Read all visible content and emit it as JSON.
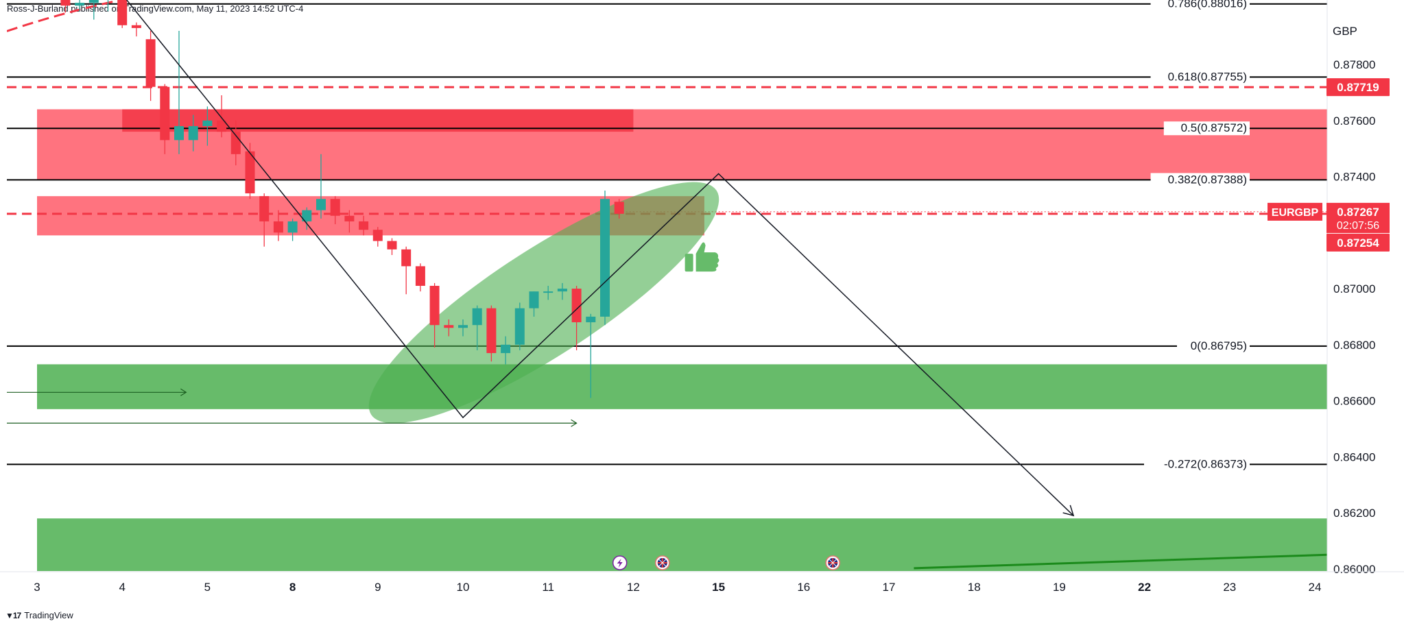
{
  "header": {
    "published_text": "Ross-J-Burland published on TradingView.com, May 11, 2023 14:52 UTC-4"
  },
  "footer": {
    "brand": "TradingView"
  },
  "colors": {
    "bull": "#26a69a",
    "bear": "#f23645",
    "supply_zone": "#ff5b68",
    "demand_zone": "#4caf50",
    "ellipse": "#4caf50",
    "price_label": "#f23645"
  },
  "chart_data": {
    "type": "candlestick",
    "symbol": "EURGBP",
    "currency": "GBP",
    "ylim": [
      0.8598,
      0.8803
    ],
    "y_ticks": [
      "0.87800",
      "0.87600",
      "0.87400",
      "0.87000",
      "0.86800",
      "0.86600",
      "0.86400",
      "0.86200",
      "0.86000"
    ],
    "x_ticks": [
      {
        "label": "3",
        "slot": 0
      },
      {
        "label": "4",
        "slot": 6
      },
      {
        "label": "5",
        "slot": 12
      },
      {
        "label": "8",
        "slot": 18
      },
      {
        "label": "9",
        "slot": 24
      },
      {
        "label": "10",
        "slot": 30
      },
      {
        "label": "11",
        "slot": 36
      },
      {
        "label": "12",
        "slot": 42
      },
      {
        "label": "15",
        "slot": 48
      },
      {
        "label": "16",
        "slot": 54
      },
      {
        "label": "17",
        "slot": 60
      },
      {
        "label": "18",
        "slot": 66
      },
      {
        "label": "19",
        "slot": 72
      },
      {
        "label": "22",
        "slot": 78
      },
      {
        "label": "23",
        "slot": 84
      },
      {
        "label": "24",
        "slot": 90
      }
    ],
    "candles": [
      {
        "slot": 2,
        "o": 0.88055,
        "h": 0.8808,
        "l": 0.87985,
        "c": 0.8801
      },
      {
        "slot": 3,
        "o": 0.8801,
        "h": 0.8806,
        "l": 0.8799,
        "c": 0.8802
      },
      {
        "slot": 4,
        "o": 0.8802,
        "h": 0.88045,
        "l": 0.8796,
        "c": 0.8803
      },
      {
        "slot": 5,
        "o": 0.8803,
        "h": 0.8805,
        "l": 0.8799,
        "c": 0.8804
      },
      {
        "slot": 6,
        "o": 0.8807,
        "h": 0.8809,
        "l": 0.8793,
        "c": 0.8794
      },
      {
        "slot": 7,
        "o": 0.8794,
        "h": 0.8795,
        "l": 0.879,
        "c": 0.8793
      },
      {
        "slot": 8,
        "o": 0.8789,
        "h": 0.8792,
        "l": 0.8767,
        "c": 0.8772
      },
      {
        "slot": 9,
        "o": 0.8772,
        "h": 0.8773,
        "l": 0.8748,
        "c": 0.8753
      },
      {
        "slot": 10,
        "o": 0.8753,
        "h": 0.8792,
        "l": 0.8748,
        "c": 0.8758
      },
      {
        "slot": 11,
        "o": 0.8753,
        "h": 0.8762,
        "l": 0.8749,
        "c": 0.8758
      },
      {
        "slot": 12,
        "o": 0.8758,
        "h": 0.8765,
        "l": 0.8751,
        "c": 0.876
      },
      {
        "slot": 13,
        "o": 0.876,
        "h": 0.8769,
        "l": 0.8754,
        "c": 0.8756
      },
      {
        "slot": 14,
        "o": 0.8756,
        "h": 0.876,
        "l": 0.8744,
        "c": 0.8748
      },
      {
        "slot": 15,
        "o": 0.8749,
        "h": 0.8752,
        "l": 0.8732,
        "c": 0.8734
      },
      {
        "slot": 16,
        "o": 0.8733,
        "h": 0.8734,
        "l": 0.8715,
        "c": 0.8724
      },
      {
        "slot": 17,
        "o": 0.8724,
        "h": 0.8728,
        "l": 0.8717,
        "c": 0.872
      },
      {
        "slot": 18,
        "o": 0.872,
        "h": 0.8725,
        "l": 0.8717,
        "c": 0.8724
      },
      {
        "slot": 19,
        "o": 0.8724,
        "h": 0.8729,
        "l": 0.8721,
        "c": 0.8728
      },
      {
        "slot": 20,
        "o": 0.8728,
        "h": 0.8748,
        "l": 0.8725,
        "c": 0.8732
      },
      {
        "slot": 21,
        "o": 0.8732,
        "h": 0.8733,
        "l": 0.8723,
        "c": 0.8726
      },
      {
        "slot": 22,
        "o": 0.8726,
        "h": 0.8728,
        "l": 0.872,
        "c": 0.8724
      },
      {
        "slot": 23,
        "o": 0.8724,
        "h": 0.8726,
        "l": 0.8719,
        "c": 0.8721
      },
      {
        "slot": 24,
        "o": 0.8721,
        "h": 0.8722,
        "l": 0.8715,
        "c": 0.8717
      },
      {
        "slot": 25,
        "o": 0.8717,
        "h": 0.8718,
        "l": 0.8712,
        "c": 0.8714
      },
      {
        "slot": 26,
        "o": 0.8714,
        "h": 0.8715,
        "l": 0.8698,
        "c": 0.8708
      },
      {
        "slot": 27,
        "o": 0.8708,
        "h": 0.8709,
        "l": 0.8699,
        "c": 0.8701
      },
      {
        "slot": 28,
        "o": 0.8701,
        "h": 0.8702,
        "l": 0.8679,
        "c": 0.8687
      },
      {
        "slot": 29,
        "o": 0.8687,
        "h": 0.8689,
        "l": 0.8683,
        "c": 0.8686
      },
      {
        "slot": 30,
        "o": 0.8686,
        "h": 0.8689,
        "l": 0.8683,
        "c": 0.8687
      },
      {
        "slot": 31,
        "o": 0.8687,
        "h": 0.8694,
        "l": 0.8678,
        "c": 0.8693
      },
      {
        "slot": 32,
        "o": 0.8693,
        "h": 0.8694,
        "l": 0.8674,
        "c": 0.8677
      },
      {
        "slot": 33,
        "o": 0.8677,
        "h": 0.8683,
        "l": 0.8673,
        "c": 0.868
      },
      {
        "slot": 34,
        "o": 0.868,
        "h": 0.8695,
        "l": 0.8678,
        "c": 0.8693
      },
      {
        "slot": 35,
        "o": 0.8693,
        "h": 0.8699,
        "l": 0.869,
        "c": 0.8699
      },
      {
        "slot": 36,
        "o": 0.8699,
        "h": 0.8701,
        "l": 0.8696,
        "c": 0.8699
      },
      {
        "slot": 37,
        "o": 0.8699,
        "h": 0.8702,
        "l": 0.8696,
        "c": 0.87
      },
      {
        "slot": 38,
        "o": 0.87,
        "h": 0.8701,
        "l": 0.8678,
        "c": 0.8688
      },
      {
        "slot": 39,
        "o": 0.8688,
        "h": 0.8691,
        "l": 0.8661,
        "c": 0.869
      },
      {
        "slot": 40,
        "o": 0.869,
        "h": 0.8735,
        "l": 0.8687,
        "c": 0.8732
      },
      {
        "slot": 41,
        "o": 0.8731,
        "h": 0.8732,
        "l": 0.8725,
        "c": 0.87267
      }
    ],
    "fib_levels": [
      {
        "label": "0.786(0.88016)",
        "value": 0.88016
      },
      {
        "label": "0.618(0.87755)",
        "value": 0.87755
      },
      {
        "label": "0.5(0.87572)",
        "value": 0.87572
      },
      {
        "label": "0.382(0.87388)",
        "value": 0.87388
      },
      {
        "label": "0(0.86795)",
        "value": 0.86795
      },
      {
        "label": "-0.272(0.86373)",
        "value": 0.86373
      }
    ],
    "dashed_levels": [
      {
        "value": 0.87719,
        "label": "0.87719"
      },
      {
        "value": 0.87267
      }
    ],
    "price_labels": {
      "level_719": "0.87719",
      "symbol": "EURGBP",
      "last": "0.87267",
      "countdown": "02:07:56",
      "other": "0.87254"
    },
    "supply_zones": [
      {
        "y_top": 0.8764,
        "y_bottom": 0.8739,
        "slot_start": 0,
        "slot_end": 95
      },
      {
        "y_top": 0.8764,
        "y_bottom": 0.8756,
        "slot_start": 6,
        "slot_end": 42
      },
      {
        "y_top": 0.8733,
        "y_bottom": 0.8719,
        "slot_start": 0,
        "slot_end": 47
      }
    ],
    "demand_zones": [
      {
        "y_top": 0.8673,
        "y_bottom": 0.8657,
        "slot_start": 0,
        "slot_end": 95
      },
      {
        "y_top": 0.8618,
        "y_bottom": 0.8598,
        "slot_start": 0,
        "slot_end": 95
      }
    ],
    "projection_path": [
      {
        "slot": 6,
        "y": 0.8805
      },
      {
        "slot": 30,
        "y": 0.8654
      },
      {
        "slot": 48,
        "y": 0.8741
      },
      {
        "slot": 73,
        "y": 0.8619
      }
    ],
    "trend_line": [
      {
        "slot": 62,
        "y": 0.8599
      },
      {
        "slot": 95,
        "y": 0.8606
      }
    ],
    "top_curve": [
      {
        "slot": 0,
        "y": 0.8798
      },
      {
        "slot": 20,
        "y": 0.8808
      }
    ],
    "arrows": [
      {
        "slot_start": 0,
        "slot_end": 10.5,
        "y": 0.8663
      },
      {
        "slot_start": 0,
        "slot_end": 38,
        "y": 0.8652
      }
    ],
    "ellipse": {
      "slot_center": 35.7,
      "y_center": 0.8695,
      "slot_radius": 14.5,
      "y_radius": 0.0042,
      "rotation_deg": -33
    },
    "event_icons": [
      {
        "slot": 41,
        "kind": "lightning-icon"
      },
      {
        "slot": 44,
        "kind": "uk-flag-icon"
      },
      {
        "slot": 56,
        "kind": "uk-flag-icon"
      }
    ],
    "thumbs_up": {
      "slot": 46.6,
      "y": 0.8711
    }
  }
}
